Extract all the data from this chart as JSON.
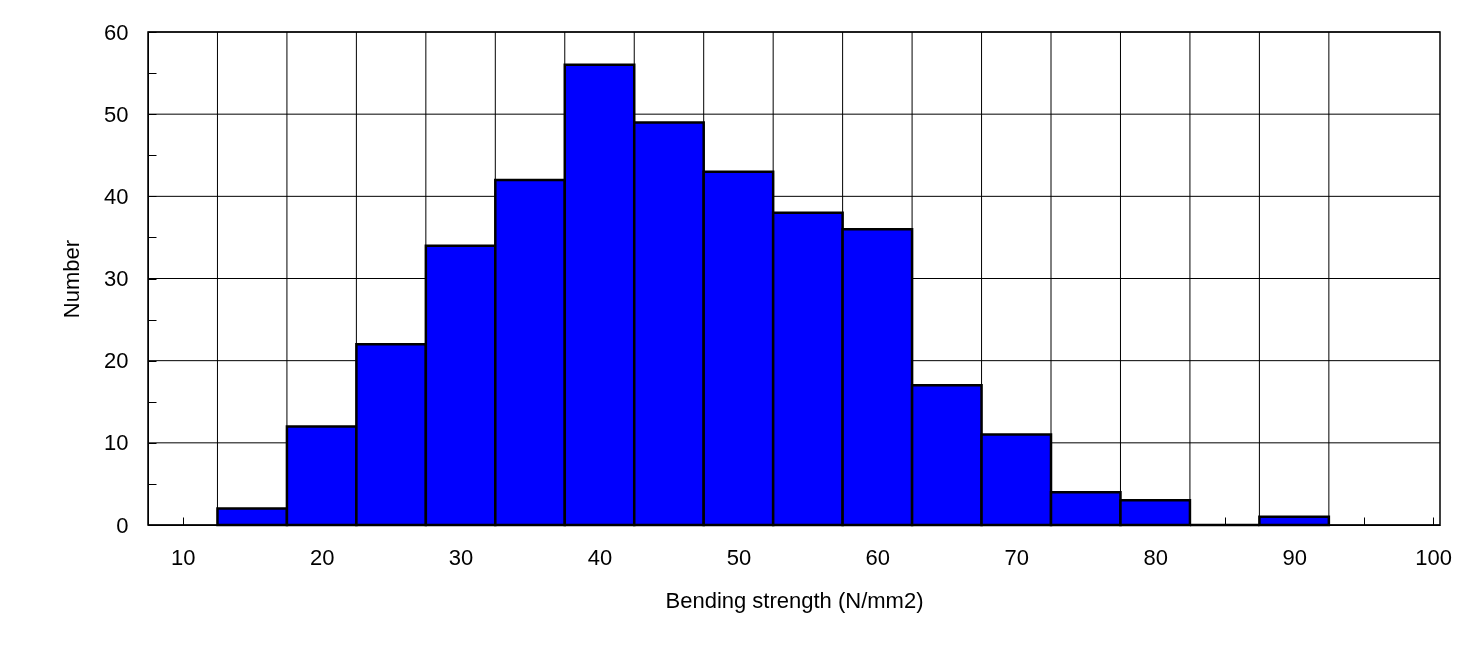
{
  "chart_data": {
    "type": "histogram",
    "xlabel": "Bending strength (N/mm2)",
    "ylabel": "Number",
    "color": "#0000ff",
    "bins": [
      12.5,
      17.5,
      22.5,
      27.5,
      32.5,
      37.5,
      42.5,
      47.5,
      52.5,
      57.5,
      62.5,
      67.5,
      72.5,
      77.5,
      82.5,
      87.5,
      92.5
    ],
    "values": [
      2,
      12,
      22,
      34,
      42,
      56,
      49,
      43,
      38,
      36,
      17,
      11,
      4,
      3,
      null,
      1
    ],
    "xlim": [
      7.5,
      100.5
    ],
    "xticks": [
      10,
      {
        "value": 15,
        "label": null
      },
      20,
      {
        "value": 25,
        "label": null
      },
      30,
      {
        "value": 35,
        "label": null
      },
      40,
      {
        "value": 45,
        "label": null
      },
      50,
      {
        "value": 55,
        "label": null
      },
      60,
      {
        "value": 65,
        "label": null
      },
      70,
      {
        "value": 75,
        "label": null
      },
      80,
      {
        "value": 85,
        "label": null
      },
      90,
      {
        "value": 95,
        "label": null
      },
      100
    ],
    "ylim": [
      0,
      60
    ],
    "yticks": [
      0,
      {
        "value": 5,
        "label": null
      },
      10,
      {
        "value": 15,
        "label": null
      },
      20,
      {
        "value": 25,
        "label": null
      },
      30,
      {
        "value": 35,
        "label": null
      },
      40,
      {
        "value": 45,
        "label": null
      },
      50,
      {
        "value": 55,
        "label": null
      },
      60
    ],
    "grid": true
  }
}
